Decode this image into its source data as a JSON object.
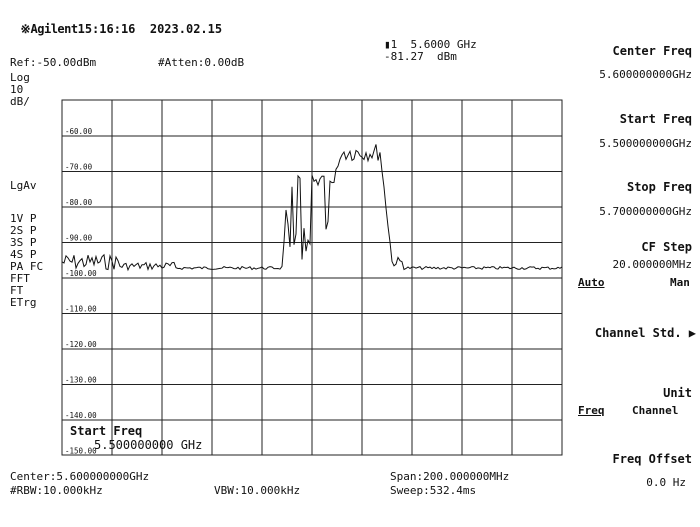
{
  "header": {
    "brand_icon": "sunburst-icon",
    "brand": "Agilent",
    "datetime": "15:16:16  2023.02.15"
  },
  "info": {
    "ref": "Ref:-50.00dBm",
    "att": "#Atten:0.00dB",
    "marker_freq": "▮1  5.6000 GHz",
    "marker_level": "-81.27  dBm"
  },
  "scale": {
    "mode": "Log",
    "div": "10",
    "unit": "dB/",
    "avg": "LgAv",
    "flags": [
      "1V P",
      "2S P",
      "3S P",
      "4S P",
      "PA FC",
      "FFT",
      "FT",
      "ETrg"
    ]
  },
  "grid": {
    "ticks": [
      "-60.00",
      "-70.00",
      "-80.00",
      "-90.00",
      "-100.00",
      "-110.00",
      "-120.00",
      "-130.00",
      "-140.00",
      "-150.00"
    ]
  },
  "overlay": {
    "title": "Start Freq",
    "value": "5.500000000 GHz"
  },
  "footer": {
    "center": "Center:5.600000000GHz",
    "rbw": "#RBW:10.000kHz",
    "vbw": "VBW:10.000kHz",
    "span": "Span:200.000000MHz",
    "sweep": "Sweep:532.4ms"
  },
  "softkeys": {
    "center_freq_label": "Center Freq",
    "center_freq_value": "5.600000000GHz",
    "start_freq_label": "Start Freq",
    "start_freq_value": "5.500000000GHz",
    "stop_freq_label": "Stop Freq",
    "stop_freq_value": "5.700000000GHz",
    "cf_step_label": "CF Step",
    "cf_step_value": "20.000000MHz",
    "auto_label": "Auto",
    "man_label": "Man",
    "channel_std_label": "Channel Std. ▶",
    "unit_label": "Unit",
    "freq_label": "Freq",
    "channel_label": "Channel",
    "freq_offset_label": "Freq Offset",
    "freq_offset_value": "0.0 Hz"
  }
}
